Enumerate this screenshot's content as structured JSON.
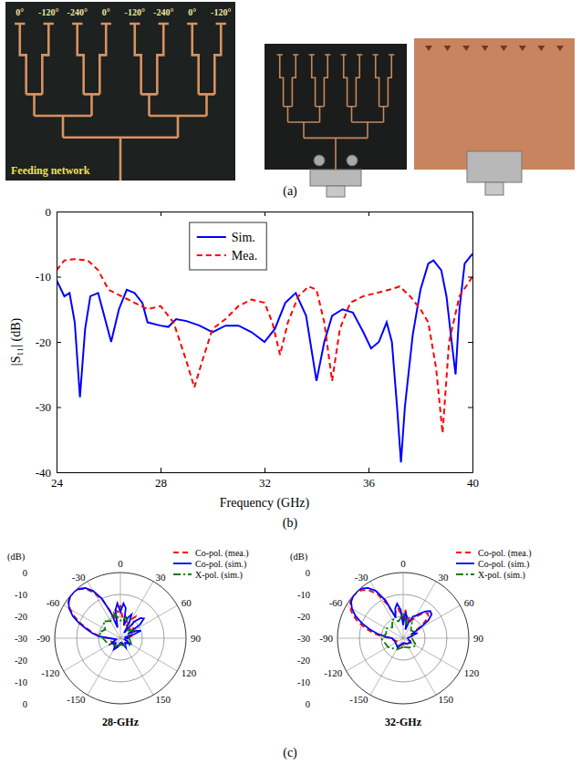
{
  "panel_labels": [
    "(a)",
    "(b)",
    "(c)"
  ],
  "photo": {
    "phase_labels": [
      "0°",
      "-120°",
      "-240°",
      "0°",
      "-120°",
      "-240°",
      "0°",
      "-120°"
    ],
    "caption": "Feeding network"
  },
  "chart_data": [
    {
      "type": "line",
      "xlabel": "Frequency (GHz)",
      "ylabel": "|S₁₁| (dB)",
      "xlim": [
        24,
        40
      ],
      "xticks": [
        24,
        28,
        32,
        36,
        40
      ],
      "ylim": [
        -40,
        0
      ],
      "yticks": [
        -40,
        -30,
        -20,
        -10,
        0
      ],
      "grid": false,
      "legend": "top",
      "series": [
        {
          "name": "Sim.",
          "color": "#0000ff",
          "line_style": "solid",
          "x": [
            24,
            24.3,
            24.5,
            24.7,
            24.9,
            25.1,
            25.3,
            25.6,
            25.9,
            26.1,
            26.4,
            26.7,
            27,
            27.3,
            27.5,
            28,
            28.3,
            28.6,
            29,
            29.5,
            30,
            30.5,
            31,
            31.5,
            32,
            32.4,
            32.8,
            33.2,
            33.6,
            34,
            34.3,
            34.6,
            35,
            35.4,
            35.8,
            36.1,
            36.4,
            36.7,
            36.9,
            37.1,
            37.25,
            37.4,
            37.7,
            38,
            38.3,
            38.5,
            38.8,
            39,
            39.2,
            39.35,
            39.5,
            39.7,
            40
          ],
          "values": [
            -10.5,
            -13,
            -12.5,
            -17,
            -28.5,
            -18,
            -13,
            -12.5,
            -17,
            -20,
            -15,
            -12,
            -12.5,
            -14,
            -17,
            -17.5,
            -17.7,
            -16.5,
            -16.8,
            -17.5,
            -18.5,
            -17.5,
            -17.5,
            -18.5,
            -20,
            -18,
            -14,
            -12.5,
            -16,
            -26,
            -20,
            -16,
            -15,
            -15.5,
            -18.5,
            -21,
            -20,
            -17,
            -20,
            -30,
            -38.5,
            -30,
            -19,
            -12,
            -8,
            -7.5,
            -9,
            -13,
            -20,
            -25,
            -15,
            -8,
            -6.5
          ]
        },
        {
          "name": "Mea.",
          "color": "#ff0000",
          "line_style": "dashed",
          "x": [
            24,
            24.3,
            24.7,
            25.2,
            25.6,
            26,
            26.5,
            27,
            27.5,
            28,
            28.5,
            29,
            29.3,
            29.6,
            30,
            30.5,
            31,
            31.5,
            32,
            32.3,
            32.6,
            32.9,
            33.3,
            33.7,
            34,
            34.3,
            34.6,
            34.9,
            35.3,
            35.8,
            36.3,
            36.8,
            37.2,
            37.6,
            38,
            38.3,
            38.6,
            38.85,
            39.1,
            39.5,
            40
          ],
          "values": [
            -9,
            -7.5,
            -7.3,
            -7.5,
            -9,
            -12,
            -13,
            -14,
            -15,
            -14.5,
            -17,
            -23,
            -27,
            -23,
            -18,
            -16.5,
            -14.5,
            -13.5,
            -14,
            -17,
            -22,
            -17,
            -13,
            -11.5,
            -12,
            -17,
            -26,
            -18,
            -14,
            -13,
            -12.5,
            -12,
            -11.5,
            -13,
            -15,
            -17,
            -24,
            -34,
            -20,
            -13,
            -10
          ]
        }
      ]
    },
    {
      "type": "polar",
      "title": "28-GHz",
      "ylabel": "(dB)",
      "rlim": [
        -30,
        0
      ],
      "rticks": [
        -30,
        -20,
        -10,
        0
      ],
      "thetaticks": [
        0,
        30,
        60,
        90,
        120,
        150,
        -150,
        -120,
        -90,
        -60,
        -30
      ],
      "grid": true,
      "legend": "upper right",
      "series": [
        {
          "name": "Co-pol. (mea.)",
          "color": "#ff0000",
          "line_style": "dashed",
          "theta": [
            -180,
            -150,
            -120,
            -90,
            -85,
            -80,
            -75,
            -70,
            -65,
            -60,
            -55,
            -50,
            -45,
            -40,
            -35,
            -30,
            -25,
            -20,
            -15,
            -10,
            -5,
            0,
            5,
            10,
            15,
            20,
            25,
            30,
            35,
            40,
            45,
            50,
            60,
            70,
            80,
            90,
            120,
            150,
            180
          ],
          "values": [
            -27,
            -25,
            -26,
            -24,
            -21,
            -18,
            -15,
            -11,
            -7,
            -3.5,
            -1.2,
            -0.3,
            0,
            -0.8,
            -2.5,
            -6,
            -11,
            -17,
            -20,
            -17,
            -18,
            -15,
            -20,
            -22,
            -19,
            -21,
            -24,
            -20,
            -18,
            -21,
            -25,
            -22,
            -24,
            -26,
            -25,
            -27,
            -26,
            -27,
            -27
          ]
        },
        {
          "name": "Co-pol. (sim.)",
          "color": "#0000ff",
          "line_style": "solid",
          "theta": [
            -180,
            -165,
            -150,
            -135,
            -120,
            -105,
            -90,
            -85,
            -80,
            -75,
            -70,
            -65,
            -60,
            -55,
            -50,
            -45,
            -40,
            -35,
            -30,
            -25,
            -20,
            -15,
            -10,
            -5,
            0,
            5,
            10,
            15,
            20,
            25,
            30,
            35,
            40,
            45,
            50,
            55,
            60,
            65,
            70,
            75,
            80,
            90,
            105,
            120,
            135,
            150,
            165,
            180
          ],
          "values": [
            -28,
            -26,
            -24,
            -27,
            -25,
            -28,
            -25,
            -20,
            -17,
            -14,
            -10,
            -6,
            -3,
            -1,
            -0.2,
            0,
            -0.5,
            -2,
            -5,
            -10,
            -18,
            -25,
            -17,
            -14,
            -18,
            -14,
            -16,
            -24,
            -20,
            -18,
            -22,
            -27,
            -20,
            -17,
            -16,
            -19,
            -26,
            -22,
            -20,
            -24,
            -28,
            -26,
            -28,
            -25,
            -27,
            -25,
            -28,
            -28
          ]
        },
        {
          "name": "X-pol. (sim.)",
          "color": "#008000",
          "line_style": "dashdot",
          "theta": [
            -180,
            -150,
            -120,
            -90,
            -75,
            -60,
            -45,
            -30,
            -15,
            0,
            15,
            30,
            45,
            60,
            90,
            120,
            150,
            180
          ],
          "values": [
            -27,
            -26,
            -24,
            -22,
            -20,
            -22,
            -19,
            -21,
            -18,
            -22,
            -20,
            -23,
            -25,
            -23,
            -26,
            -24,
            -26,
            -27
          ]
        }
      ]
    },
    {
      "type": "polar",
      "title": "32-GHz",
      "ylabel": "(dB)",
      "rlim": [
        -30,
        0
      ],
      "rticks": [
        -30,
        -20,
        -10,
        0
      ],
      "thetaticks": [
        0,
        30,
        60,
        90,
        120,
        150,
        -150,
        -120,
        -90,
        -60,
        -30
      ],
      "grid": true,
      "legend": "upper right",
      "series": [
        {
          "name": "Co-pol. (mea.)",
          "color": "#ff0000",
          "line_style": "dashed",
          "theta": [
            -180,
            -150,
            -120,
            -90,
            -85,
            -80,
            -75,
            -70,
            -65,
            -60,
            -55,
            -50,
            -45,
            -40,
            -35,
            -30,
            -25,
            -20,
            -15,
            -10,
            -5,
            0,
            5,
            10,
            15,
            20,
            25,
            30,
            35,
            40,
            45,
            50,
            55,
            60,
            70,
            80,
            90,
            120,
            150,
            180
          ],
          "values": [
            -27,
            -26,
            -27,
            -24,
            -20,
            -16,
            -12,
            -8,
            -4.5,
            -2,
            -0.6,
            0,
            -0.3,
            -1.2,
            -3.5,
            -7,
            -13,
            -19,
            -17,
            -16,
            -19,
            -21,
            -17,
            -22,
            -20,
            -23,
            -21,
            -19,
            -17,
            -15,
            -14,
            -15,
            -19,
            -24,
            -25,
            -26,
            -27,
            -26,
            -27,
            -27
          ]
        },
        {
          "name": "Co-pol. (sim.)",
          "color": "#0000ff",
          "line_style": "solid",
          "theta": [
            -180,
            -150,
            -120,
            -90,
            -85,
            -80,
            -75,
            -70,
            -65,
            -60,
            -55,
            -50,
            -45,
            -40,
            -35,
            -30,
            -25,
            -20,
            -15,
            -10,
            -5,
            0,
            5,
            10,
            15,
            20,
            25,
            30,
            35,
            40,
            45,
            50,
            55,
            60,
            65,
            70,
            80,
            90,
            120,
            150,
            180
          ],
          "values": [
            -28,
            -25,
            -26,
            -25,
            -22,
            -18,
            -14,
            -10,
            -6,
            -3,
            -1,
            -0.2,
            0,
            -0.4,
            -2,
            -5,
            -11,
            -20,
            -16,
            -14,
            -17,
            -24,
            -18,
            -20,
            -26,
            -22,
            -19,
            -18,
            -16,
            -14,
            -12.5,
            -13,
            -16,
            -22,
            -26,
            -23,
            -27,
            -28,
            -26,
            -27,
            -28
          ]
        },
        {
          "name": "X-pol. (sim.)",
          "color": "#008000",
          "line_style": "dashdot",
          "theta": [
            -180,
            -150,
            -120,
            -90,
            -75,
            -60,
            -45,
            -30,
            -15,
            0,
            15,
            30,
            45,
            60,
            90,
            120,
            150,
            180
          ],
          "values": [
            -26,
            -24,
            -22,
            -20,
            -22,
            -21,
            -23,
            -20,
            -22,
            -19,
            -23,
            -22,
            -25,
            -24,
            -26,
            -23,
            -25,
            -26
          ]
        }
      ]
    }
  ]
}
